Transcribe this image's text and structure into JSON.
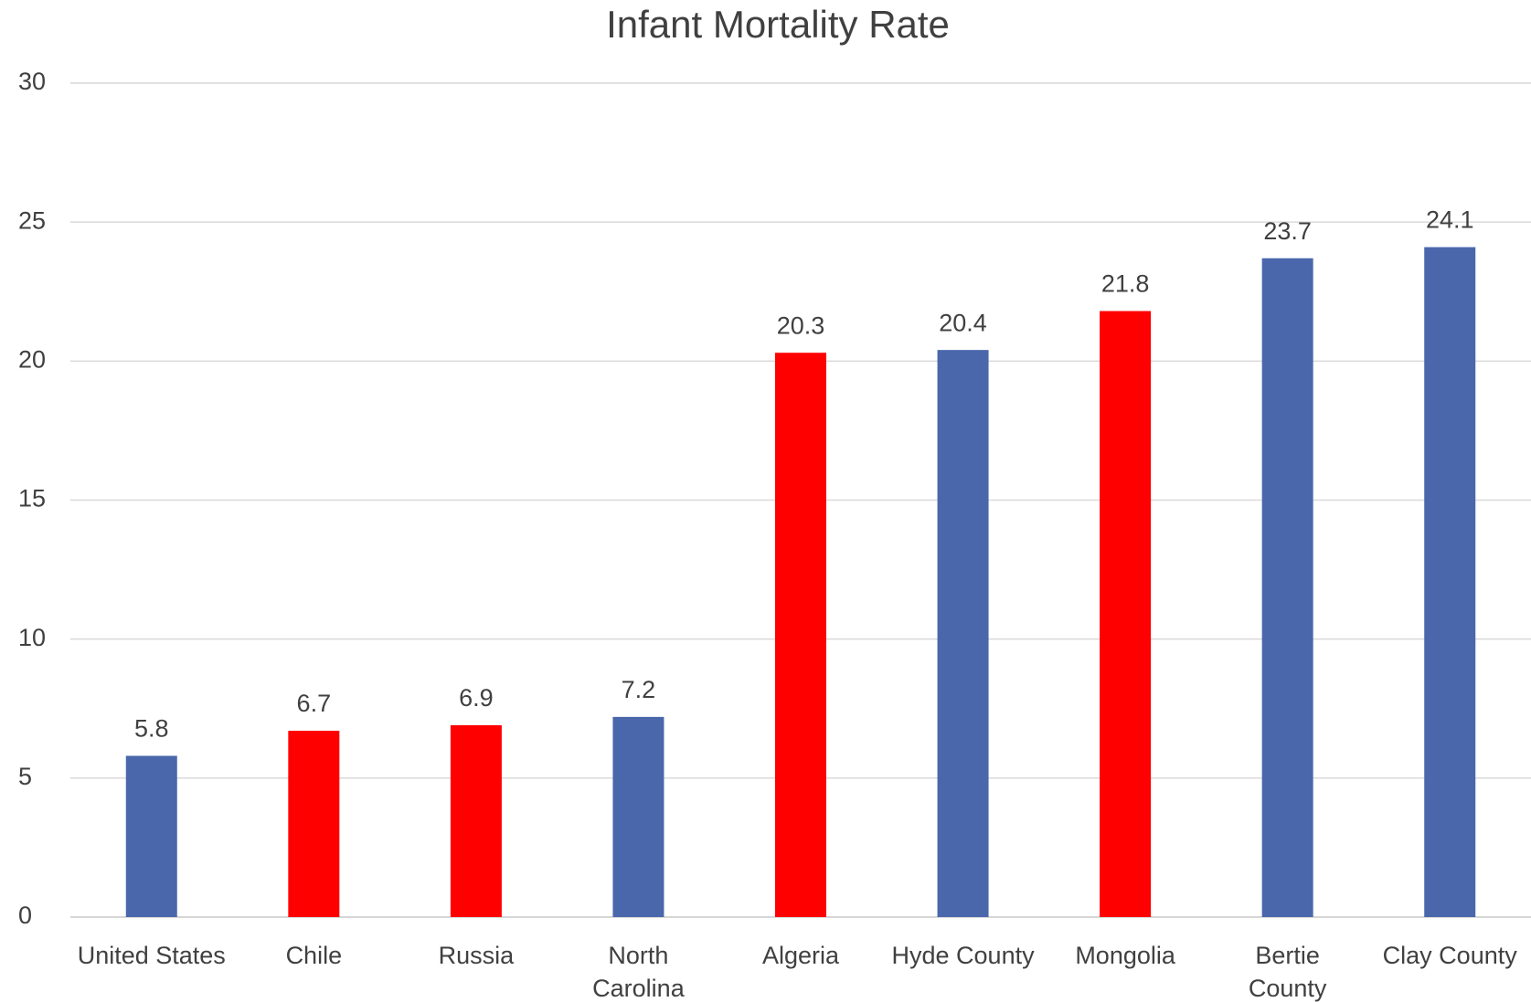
{
  "chart_data": {
    "type": "bar",
    "title": "Infant Mortality Rate",
    "categories": [
      "United States",
      "Chile",
      "Russia",
      "North\nCarolina",
      "Algeria",
      "Hyde County",
      "Mongolia",
      "Bertie\nCounty",
      "Clay County"
    ],
    "values": [
      5.8,
      6.7,
      6.9,
      7.2,
      20.3,
      20.4,
      21.8,
      23.7,
      24.1
    ],
    "colors": [
      "#4a67ac",
      "#ff0000",
      "#ff0000",
      "#4a67ac",
      "#ff0000",
      "#4a67ac",
      "#ff0000",
      "#4a67ac",
      "#4a67ac"
    ],
    "ylim": [
      0,
      30
    ],
    "yticks": [
      0,
      5,
      10,
      15,
      20,
      25,
      30
    ],
    "grid": true
  }
}
